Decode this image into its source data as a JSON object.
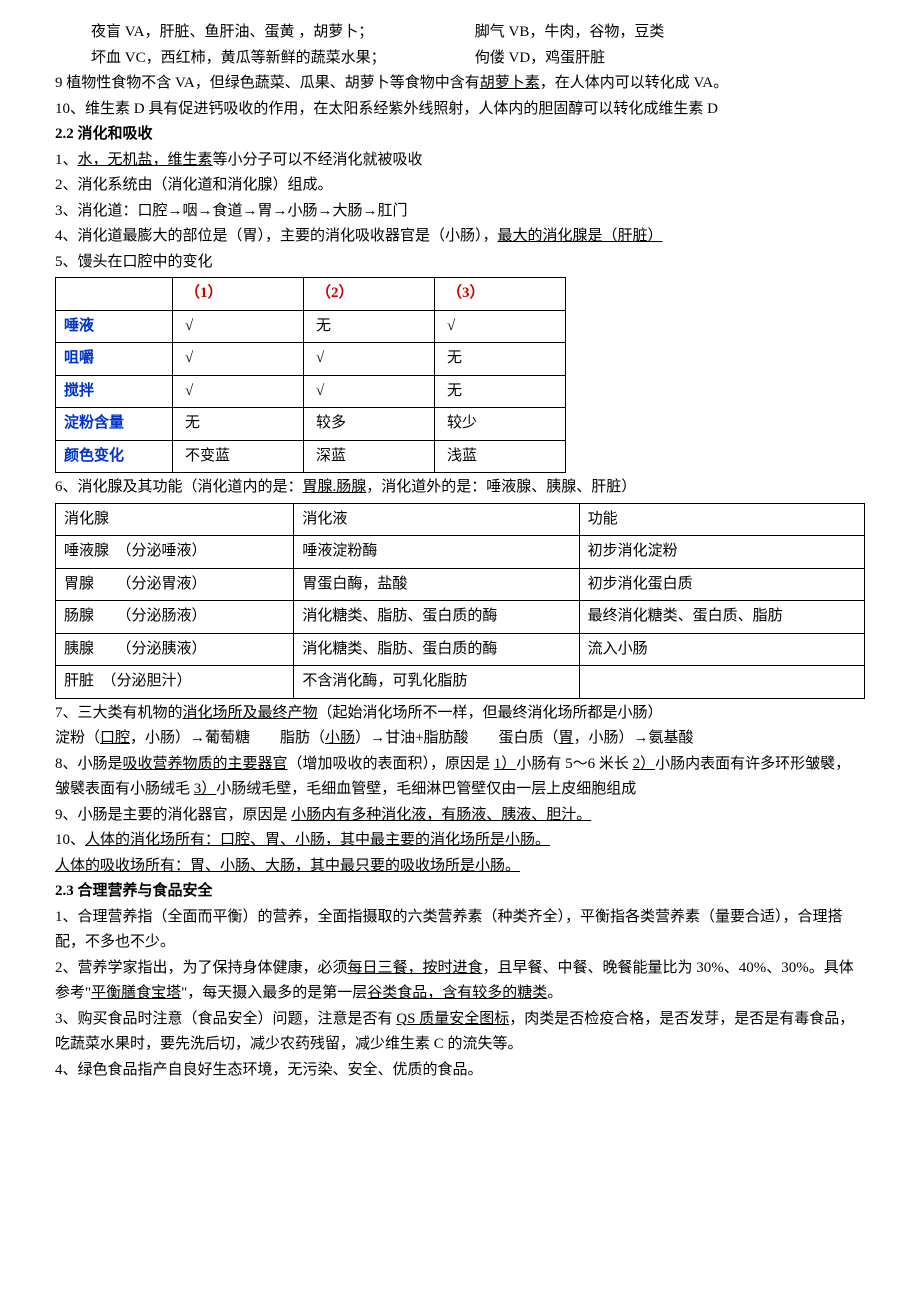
{
  "intro": {
    "l1a": "夜盲 VA，肝脏、鱼肝油、蛋黄 ，胡萝卜；",
    "l1b": "脚气 VB，牛肉，谷物，豆类",
    "l2a": "坏血 VC，西红柿，黄瓜等新鲜的蔬菜水果；",
    "l2b": "佝偻 VD，鸡蛋肝脏",
    "l3a": "9 植物性食物不含 VA，但绿色蔬菜、瓜果、胡萝卜等食物中含有",
    "l3u": "胡萝卜素",
    "l3b": "，在人体内可以转化成 VA。",
    "l4": "10、维生素 D 具有促进钙吸收的作用，在太阳系经紫外线照射，人体内的胆固醇可以转化成维生素 D"
  },
  "s22": {
    "title": "2.2 消化和吸收",
    "p1a": "1、",
    "p1u": "水，无机盐，维生素",
    "p1b": "等小分子可以不经消化就被吸收",
    "p2": "2、消化系统由（消化道和消化腺）组成。",
    "p3": "3、消化道：口腔→咽→食道→胃→小肠→大肠→肛门",
    "p4a": "4、消化道最膨大的部位是（胃），主要的消化吸收器官是（小肠），",
    "p4u": "最大的消化腺是（肝脏）",
    "p5": "5、馒头在口腔中的变化",
    "p6a": "6、消化腺及其功能（消化道内的是：",
    "p6u": "胃腺.肠腺",
    "p6b": "，消化道外的是：唾液腺、胰腺、肝脏）",
    "p7a": "7、三大类有机物的",
    "p7u": "消化场所及最终产物",
    "p7b": "（起始消化场所不一样，但最终消化场所都是小肠）",
    "p7_2a": "淀粉（",
    "p7_2u1": "口腔",
    "p7_2b": "，小肠）→葡萄糖　　脂肪（",
    "p7_2u2": "小肠",
    "p7_2c": "）→甘油+脂肪酸　　蛋白质（",
    "p7_2u3": "胃",
    "p7_2d": "，小肠）→氨基酸",
    "p8a": "8、小肠是",
    "p8u1": "吸收营养物质的主要器官",
    "p8b": "（增加吸收的表面积），原因是 ",
    "p8u2": "1）",
    "p8c": "小肠有 5～6 米长 ",
    "p8u3": "2）",
    "p8d": "小肠内表面有许多环形皱襞，皱襞表面有小肠绒毛 ",
    "p8u4": "3）",
    "p8e": "小肠绒毛壁，毛细血管壁，毛细淋巴管壁仅由一层上皮细胞组成",
    "p9a": "9、小肠是主要的消化器官，原因是 ",
    "p9u": " 小肠内有多种消化液，有肠液、胰液、胆汁。",
    "p10a": "10、",
    "p10u1": "人体的消化场所有：口腔、胃、小肠，其中最主要的消化场所是小肠。",
    "p10u2": "人体的吸收场所有：胃、小肠、大肠，其中最只要的吸收场所是小肠。"
  },
  "table1": {
    "h1": "（1）",
    "h2": "（2）",
    "h3": "（3）",
    "r1c0": "唾液",
    "r1c1": "√",
    "r1c2": "无",
    "r1c3": "√",
    "r2c0": "咀嚼",
    "r2c1": "√",
    "r2c2": "√",
    "r2c3": "无",
    "r3c0": "搅拌",
    "r3c1": "√",
    "r3c2": "√",
    "r3c3": "无",
    "r4c0": "淀粉含量",
    "r4c1": "无",
    "r4c2": "较多",
    "r4c3": "较少",
    "r5c0": "颜色变化",
    "r5c1": "不变蓝",
    "r5c2": "深蓝",
    "r5c3": "浅蓝"
  },
  "table2": {
    "h1": "消化腺",
    "h2": "消化液",
    "h3": "功能",
    "r1c1": "唾液腺　（分泌唾液）",
    "r1c2": "唾液淀粉酶",
    "r1c3": "初步消化淀粉",
    "r2c1": "胃腺　　（分泌胃液）",
    "r2c2": "胃蛋白酶，盐酸",
    "r2c3": "初步消化蛋白质",
    "r3c1": "肠腺　　（分泌肠液）",
    "r3c2": "消化糖类、脂肪、蛋白质的酶",
    "r3c3": "最终消化糖类、蛋白质、脂肪",
    "r4c1": "胰腺　　（分泌胰液）",
    "r4c2": "消化糖类、脂肪、蛋白质的酶",
    "r4c3": "流入小肠",
    "r5c1": "肝脏　（分泌胆汁）",
    "r5c2": "不含消化酶，可乳化脂肪",
    "r5c3": ""
  },
  "s23": {
    "title": "2.3 合理营养与食品安全",
    "p1": "1、合理营养指（全面而平衡）的营养，全面指摄取的六类营养素（种类齐全），平衡指各类营养素（量要合适），合理搭配，不多也不少。",
    "p2a": "2、营养学家指出，为了保持身体健康，必须",
    "p2u1": "每日三餐，按时进食",
    "p2b": "，且早餐、中餐、晚餐能量比为 30%、40%、30%。具体参考\"",
    "p2u2": "平衡膳食宝塔",
    "p2c": "\"，每天摄入最多的是第一层",
    "p2u3": "谷类食品，含有较多的糖类",
    "p2d": "。",
    "p3a": "3、购买食品时注意（食品安全）问题，注意是否有 ",
    "p3u": "QS 质量安全图标",
    "p3b": "，肉类是否检疫合格，是否发芽，是否是有毒食品，吃蔬菜水果时，要先洗后切，减少农药残留，减少维生素 C 的流失等。",
    "p4": "4、绿色食品指产自良好生态环境，无污染、安全、优质的食品。"
  }
}
